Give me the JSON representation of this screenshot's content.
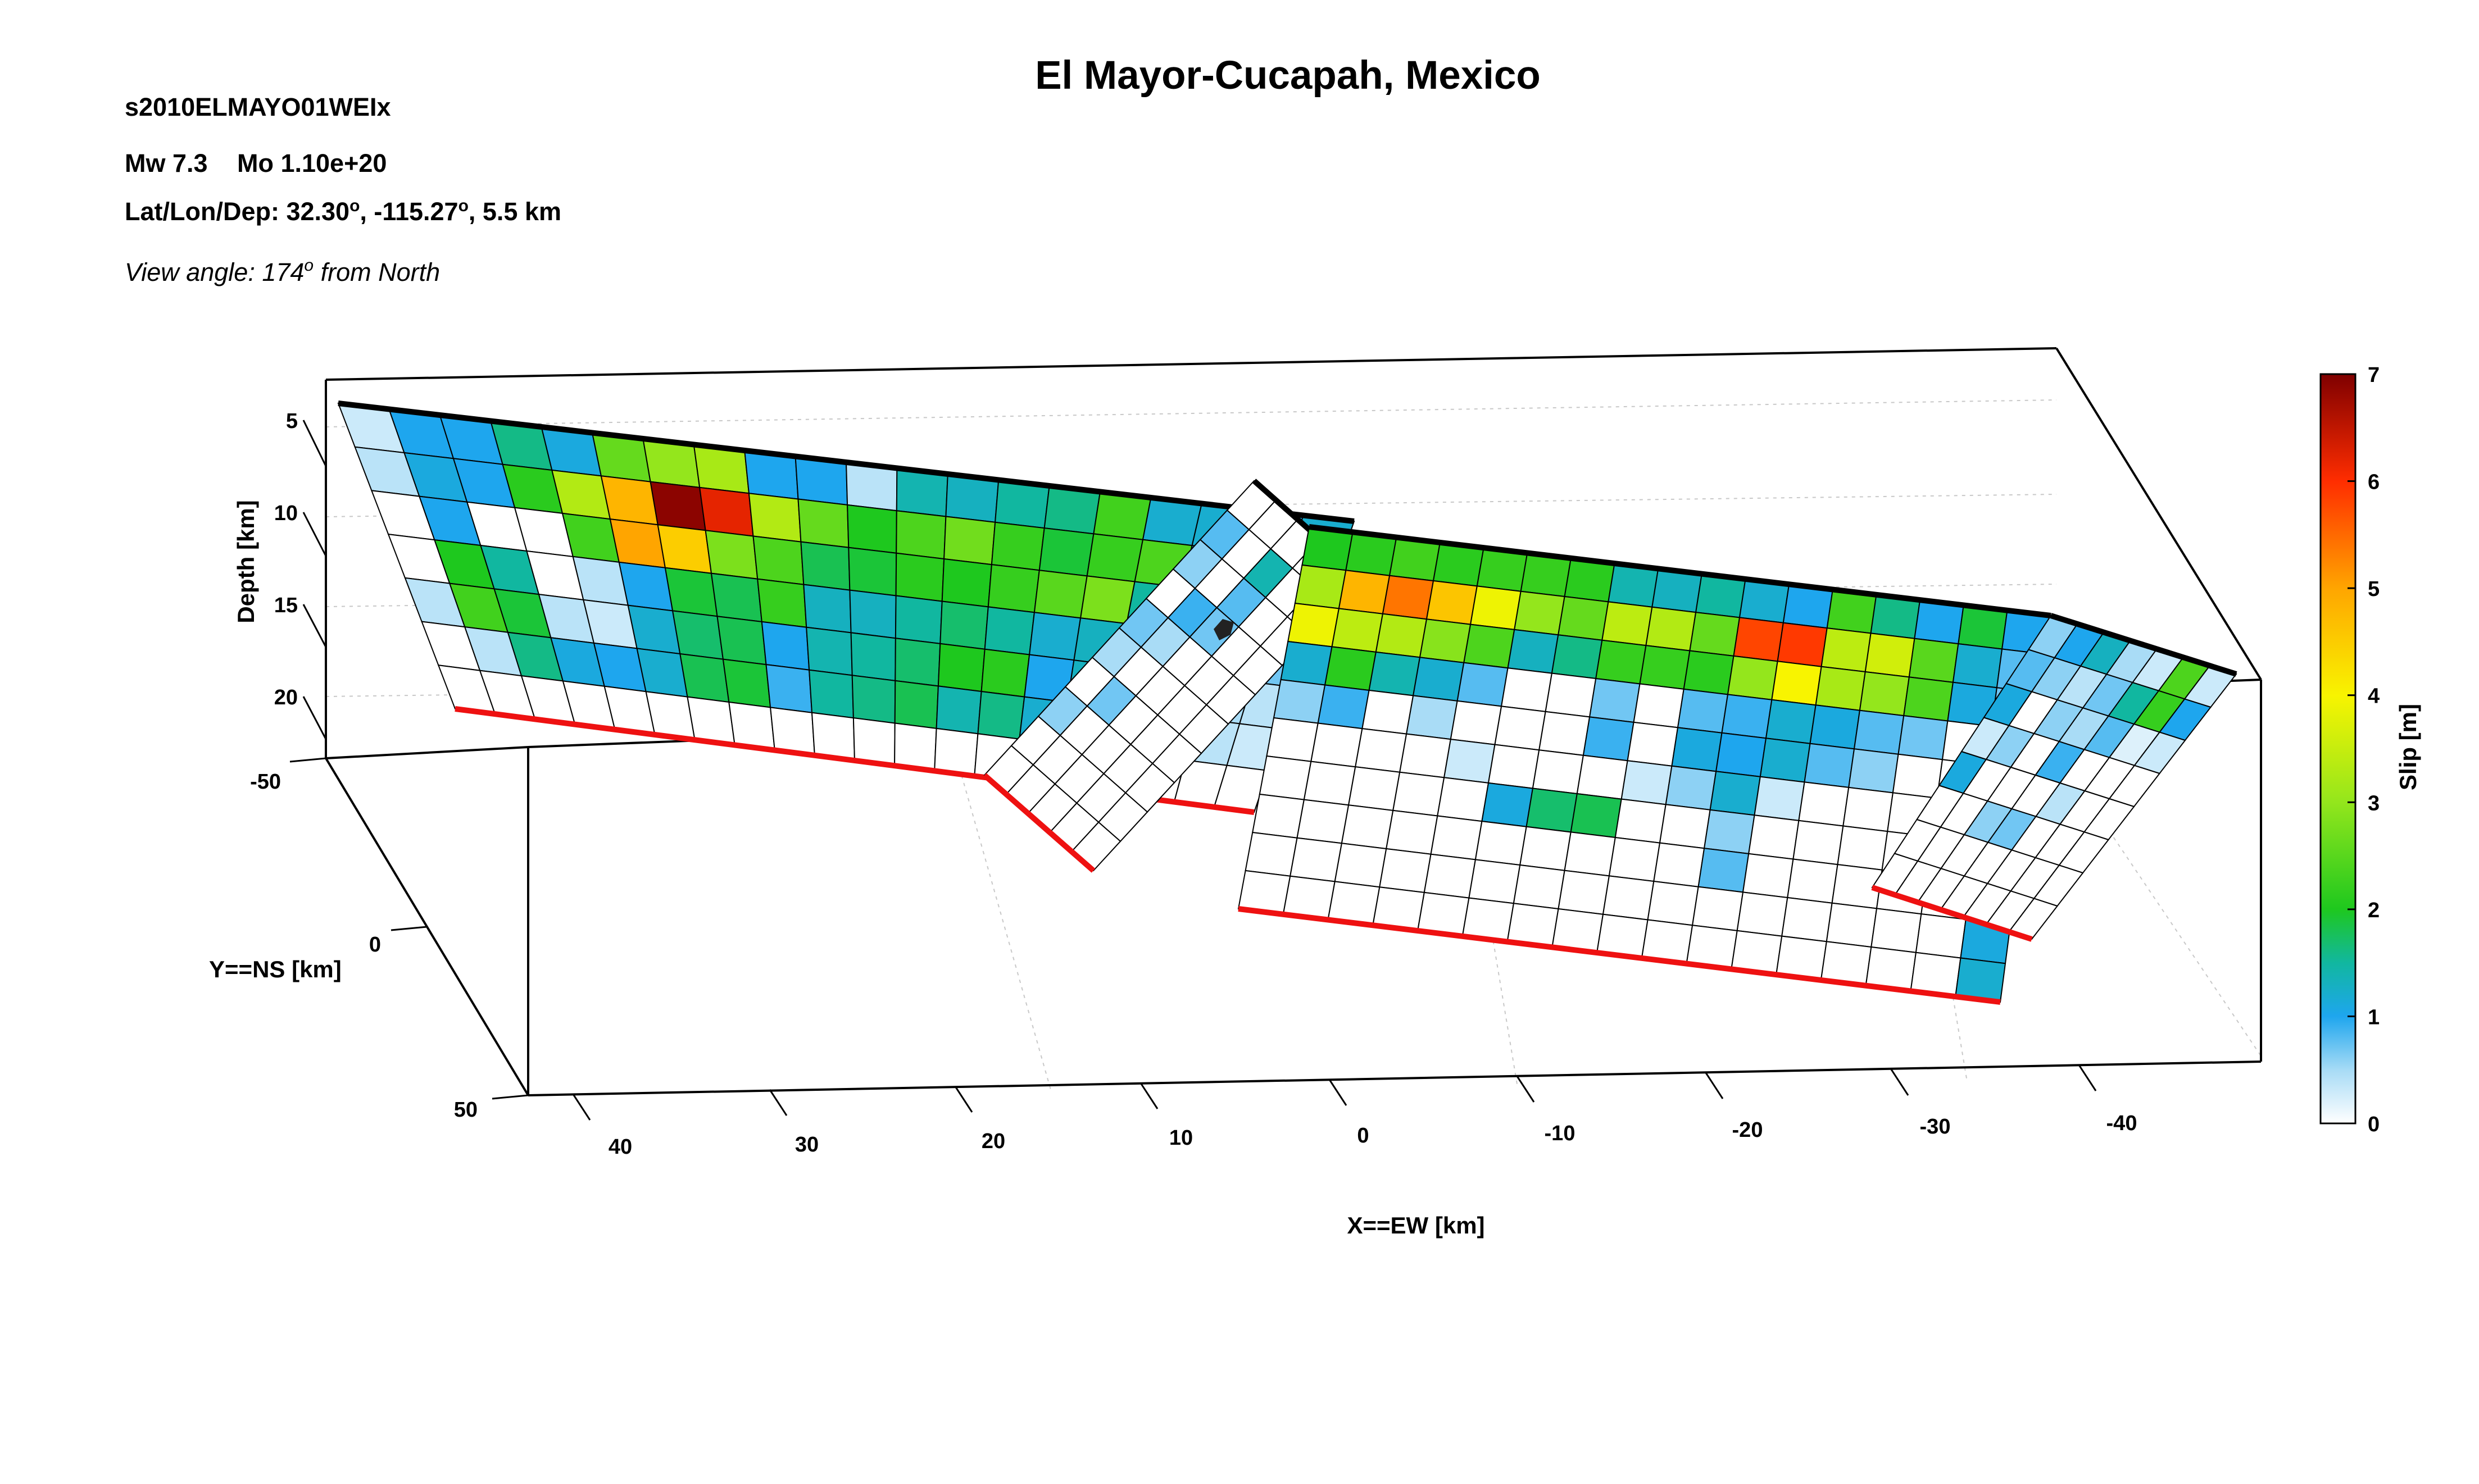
{
  "figure": {
    "title": "El Mayor-Cucapah, Mexico",
    "event_id": "s2010ELMAYO01WEIx",
    "mw_label": "Mw 7.3",
    "mo_label": "Mo 1.10e+20",
    "location_prefix": "Lat/Lon/Dep: 32.30",
    "location_lon": ", -115.27",
    "location_dep": ", 5.5 km",
    "degree_mark": "o",
    "view_angle_prefix": "View angle:  174",
    "view_angle_suffix": " from North"
  },
  "chart_data": {
    "type": "3d-fault-slip-heatmap",
    "title": "El Mayor-Cucapah, Mexico",
    "xlabel": "X==EW [km]",
    "ylabel": "Y==NS [km]",
    "zlabel": "Depth [km]",
    "x_ticks": [
      40,
      30,
      20,
      10,
      0,
      -10,
      -20,
      -30,
      -40
    ],
    "y_ticks": [
      -50,
      0,
      50
    ],
    "z_ticks": [
      5,
      10,
      15,
      20
    ],
    "colorbar": {
      "label": "Slip [m]",
      "range": [
        0,
        7
      ],
      "ticks": [
        0,
        1,
        2,
        3,
        4,
        5,
        6,
        7
      ]
    },
    "view_angle_deg": 174,
    "segments": [
      {
        "name": "west",
        "slip_m": [
          [
            0.3,
            1.0,
            1.0,
            1.6,
            1.1,
            2.6,
            3.0,
            3.2,
            1.0,
            1.0,
            0.4,
            1.4,
            1.3,
            1.5,
            1.6,
            2.3,
            1.2,
            1.2,
            1.0,
            1.2
          ],
          [
            0.4,
            1.1,
            1.0,
            2.1,
            3.3,
            4.8,
            6.9,
            6.2,
            3.3,
            2.6,
            2.0,
            2.4,
            2.7,
            2.2,
            1.9,
            2.2,
            2.4,
            1.3,
            1.6,
            1.0
          ],
          [
            0.0,
            1.0,
            0.0,
            0.0,
            2.3,
            5.0,
            4.5,
            2.8,
            2.4,
            1.8,
            1.9,
            2.1,
            2.0,
            2.2,
            2.5,
            2.8,
            1.5,
            1.3,
            1.2,
            1.0
          ],
          [
            0.0,
            2.0,
            1.5,
            0.0,
            0.4,
            1.0,
            1.9,
            1.8,
            2.2,
            1.3,
            1.3,
            1.5,
            1.7,
            1.5,
            1.2,
            1.3,
            1.1,
            0.9,
            1.0,
            0.7
          ],
          [
            0.4,
            2.3,
            1.9,
            0.4,
            0.3,
            1.2,
            1.7,
            1.8,
            1.0,
            1.4,
            1.5,
            1.7,
            2.0,
            2.1,
            1.0,
            1.3,
            1.0,
            0.7,
            0.5,
            0.4
          ],
          [
            0.0,
            0.4,
            1.6,
            1.1,
            1.0,
            1.2,
            1.8,
            1.9,
            0.9,
            1.5,
            1.6,
            1.8,
            1.4,
            1.6,
            1.2,
            0.9,
            0.7,
            0.5,
            0.4,
            0.3
          ],
          [
            0.0,
            0.0,
            0.0,
            0.0,
            0.0,
            0.0,
            0.0,
            0.0,
            0.0,
            0.0,
            0.0,
            0.0,
            0.0,
            0.0,
            0.0,
            0.0,
            0.0,
            0.0,
            0.0,
            0.0
          ]
        ]
      },
      {
        "name": "central-step",
        "slip_m": [
          [
            0.0,
            0.0,
            0.0,
            0.0,
            0.0
          ],
          [
            0.8,
            0.0,
            1.4,
            0.0,
            0.0
          ],
          [
            0.6,
            0.0,
            0.8,
            0.0,
            0.0
          ],
          [
            0.0,
            0.9,
            0.7,
            0.0,
            0.0
          ],
          [
            0.7,
            0.5,
            0.0,
            0.0,
            0.0
          ],
          [
            0.5,
            0.0,
            0.0,
            0.0,
            0.0
          ],
          [
            0.0,
            0.7,
            0.0,
            0.0,
            0.0
          ],
          [
            0.6,
            0.0,
            0.0,
            0.0,
            0.0
          ],
          [
            0.0,
            0.0,
            0.0,
            0.0,
            0.0
          ],
          [
            0.0,
            0.0,
            0.0,
            0.0,
            0.0
          ]
        ]
      },
      {
        "name": "east",
        "slip_m": [
          [
            2.0,
            2.1,
            2.3,
            2.1,
            2.2,
            2.2,
            2.1,
            1.4,
            1.3,
            1.5,
            1.2,
            1.0,
            2.3,
            1.6,
            1.0,
            1.9,
            1.0
          ],
          [
            3.2,
            4.8,
            5.4,
            4.6,
            3.9,
            3.0,
            2.6,
            3.4,
            3.3,
            2.6,
            5.8,
            5.9,
            3.4,
            3.6,
            2.5,
            1.2,
            0.8
          ],
          [
            3.9,
            3.4,
            3.3,
            2.9,
            2.4,
            1.3,
            1.6,
            2.2,
            2.2,
            2.1,
            3.0,
            4.0,
            3.2,
            3.0,
            2.4,
            1.1,
            0.7
          ],
          [
            1.2,
            2.1,
            1.4,
            1.2,
            0.8,
            0.0,
            0.0,
            0.7,
            0.0,
            0.8,
            0.9,
            1.2,
            1.1,
            0.8,
            0.7,
            0.0,
            0.0
          ],
          [
            0.6,
            0.9,
            0.0,
            0.5,
            0.0,
            0.0,
            0.0,
            0.9,
            0.0,
            1.1,
            1.0,
            1.2,
            0.8,
            0.6,
            0.0,
            0.0,
            0.0
          ],
          [
            0.0,
            0.0,
            0.0,
            0.0,
            0.3,
            0.0,
            0.0,
            0.0,
            0.3,
            0.6,
            1.2,
            0.3,
            0.0,
            0.0,
            0.0,
            0.0,
            0.0
          ],
          [
            0.0,
            0.0,
            0.0,
            0.0,
            0.0,
            1.1,
            1.7,
            1.8,
            0.0,
            0.0,
            0.6,
            0.0,
            0.0,
            0.0,
            0.0,
            0.0,
            0.0
          ],
          [
            0.0,
            0.0,
            0.0,
            0.0,
            0.0,
            0.0,
            0.0,
            0.0,
            0.0,
            0.0,
            0.8,
            0.0,
            0.0,
            0.0,
            0.0,
            0.0,
            0.0
          ],
          [
            0.0,
            0.0,
            0.0,
            0.0,
            0.0,
            0.0,
            0.0,
            0.0,
            0.0,
            0.0,
            0.0,
            0.0,
            0.0,
            0.0,
            0.0,
            0.0,
            1.1
          ],
          [
            0.0,
            0.0,
            0.0,
            0.0,
            0.0,
            0.0,
            0.0,
            0.0,
            0.0,
            0.0,
            0.0,
            0.0,
            0.0,
            0.0,
            0.0,
            0.0,
            1.2
          ]
        ]
      },
      {
        "name": "southeast",
        "slip_m": [
          [
            0.6,
            1.0,
            1.3,
            0.5,
            0.3,
            2.4,
            0.3
          ],
          [
            0.8,
            0.6,
            0.4,
            0.7,
            1.5,
            2.2,
            1.0
          ],
          [
            1.1,
            0.0,
            0.6,
            0.5,
            0.8,
            0.2,
            0.3
          ],
          [
            0.3,
            0.6,
            0.0,
            0.9,
            0.0,
            0.0,
            0.0
          ],
          [
            1.1,
            0.0,
            0.0,
            0.0,
            0.4,
            0.0,
            0.0
          ],
          [
            0.0,
            0.0,
            0.6,
            0.7,
            0.0,
            0.0,
            0.0
          ],
          [
            0.0,
            0.0,
            0.0,
            0.0,
            0.0,
            0.0,
            0.0
          ],
          [
            0.0,
            0.0,
            0.0,
            0.0,
            0.0,
            0.0,
            0.0
          ]
        ]
      }
    ]
  }
}
